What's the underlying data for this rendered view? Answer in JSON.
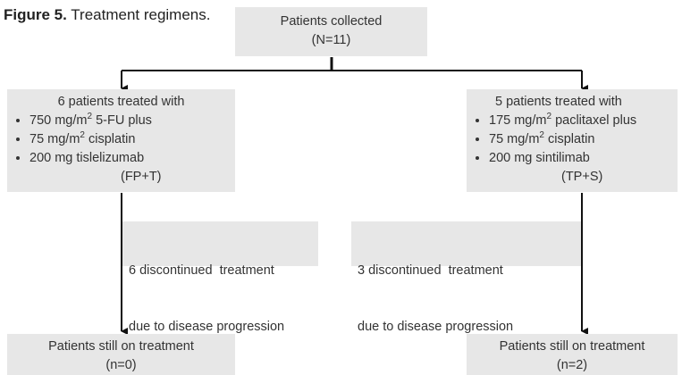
{
  "caption": {
    "label": "Figure 5.",
    "text": " Treatment regimens."
  },
  "nodes": [
    {
      "lines": [
        "Patients collected",
        "(N=11)"
      ]
    },
    {
      "title": "6 patients treated with",
      "items": [
        {
          "text": "750 mg/m",
          "sup": "2",
          "rest": " 5-FU plus"
        },
        {
          "text": "75 mg/m",
          "sup": "2",
          "rest": " cisplatin"
        },
        {
          "text": "200 mg tislelizumab"
        }
      ],
      "abbr": "(FP+T)"
    },
    {
      "title": "5 patients treated with",
      "items": [
        {
          "text": "175 mg/m",
          "sup": "2",
          "rest": " paclitaxel plus"
        },
        {
          "text": "75 mg/m",
          "sup": "2",
          "rest": " cisplatin"
        },
        {
          "text": "200 mg sintilimab"
        }
      ],
      "abbr": "(TP+S)"
    },
    {
      "lines": [
        "6 discontinued  treatment",
        "due to disease progression"
      ]
    },
    {
      "lines": [
        "3 discontinued  treatment",
        "due to disease progression"
      ]
    },
    {
      "lines": [
        "Patients still on treatment",
        "(n=0)"
      ]
    },
    {
      "lines": [
        "Patients still on treatment",
        "(n=2)"
      ]
    }
  ]
}
